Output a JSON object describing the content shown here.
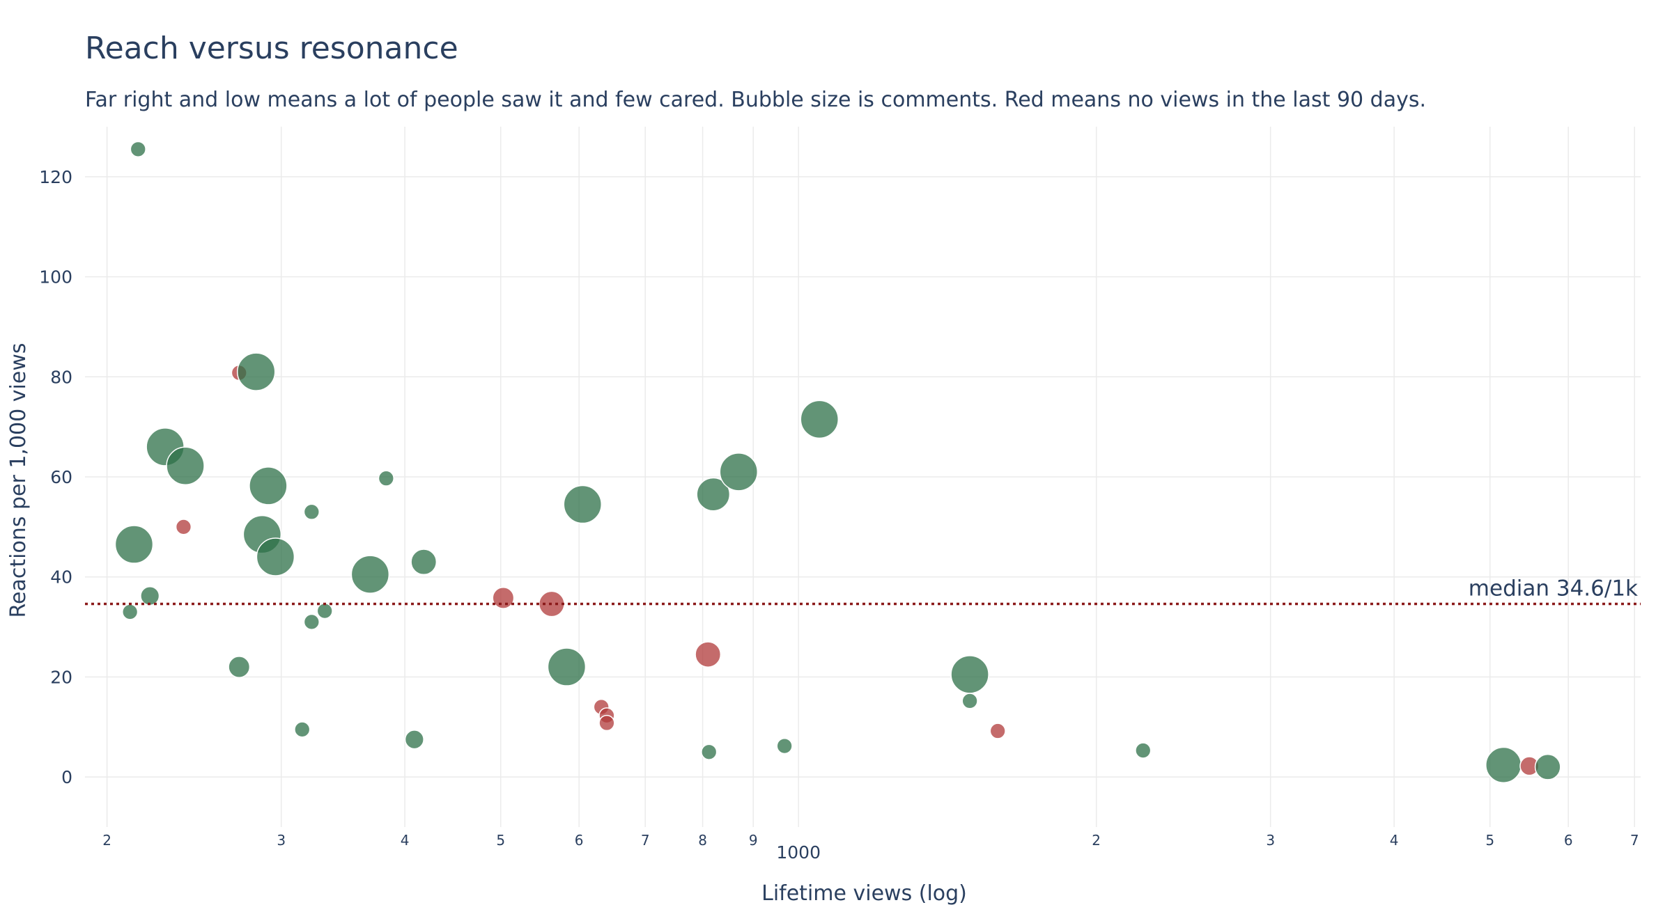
{
  "chart_data": {
    "type": "scatter",
    "title": "Reach versus resonance",
    "subtitle": "Far right and low means a lot of people saw it and few cared. Bubble size is comments. Red means no views in the last 90 days.",
    "xlabel": "Lifetime views (log)",
    "ylabel": "Reactions per 1,000 views",
    "x_scale": "log",
    "xlim": [
      190,
      7100
    ],
    "ylim": [
      -10,
      130
    ],
    "y_ticks": [
      0,
      20,
      40,
      60,
      80,
      100,
      120
    ],
    "x_ticks": [
      {
        "value": 200,
        "label": "2"
      },
      {
        "value": 300,
        "label": "3"
      },
      {
        "value": 400,
        "label": "4"
      },
      {
        "value": 500,
        "label": "5"
      },
      {
        "value": 600,
        "label": "6"
      },
      {
        "value": 700,
        "label": "7"
      },
      {
        "value": 800,
        "label": "8"
      },
      {
        "value": 900,
        "label": "9"
      },
      {
        "value": 1000,
        "label": "1000",
        "major": true
      },
      {
        "value": 2000,
        "label": "2"
      },
      {
        "value": 3000,
        "label": "3"
      },
      {
        "value": 4000,
        "label": "4"
      },
      {
        "value": 5000,
        "label": "5"
      },
      {
        "value": 6000,
        "label": "6"
      },
      {
        "value": 7000,
        "label": "7"
      }
    ],
    "grid": true,
    "median": {
      "value": 34.6,
      "label": "median 34.6/1k",
      "color": "#8b1a1a"
    },
    "colors": {
      "active": "#2e7048",
      "stale": "#b03a3a"
    },
    "points": [
      {
        "x": 215,
        "y": 125.5,
        "comments": 1,
        "stale": false
      },
      {
        "x": 213,
        "y": 46.5,
        "comments": 14,
        "stale": false
      },
      {
        "x": 211,
        "y": 33,
        "comments": 1,
        "stale": false
      },
      {
        "x": 221,
        "y": 36.2,
        "comments": 2,
        "stale": false
      },
      {
        "x": 229,
        "y": 66,
        "comments": 14,
        "stale": false
      },
      {
        "x": 240,
        "y": 62.2,
        "comments": 14,
        "stale": false
      },
      {
        "x": 239,
        "y": 50,
        "comments": 1,
        "stale": true
      },
      {
        "x": 272,
        "y": 80.8,
        "comments": 1,
        "stale": true
      },
      {
        "x": 283,
        "y": 81,
        "comments": 14,
        "stale": false
      },
      {
        "x": 272,
        "y": 22,
        "comments": 3,
        "stale": false
      },
      {
        "x": 291,
        "y": 58.2,
        "comments": 14,
        "stale": false
      },
      {
        "x": 287,
        "y": 48.5,
        "comments": 14,
        "stale": false
      },
      {
        "x": 296,
        "y": 44,
        "comments": 14,
        "stale": false
      },
      {
        "x": 315,
        "y": 9.5,
        "comments": 1,
        "stale": false
      },
      {
        "x": 322,
        "y": 53,
        "comments": 1,
        "stale": false
      },
      {
        "x": 322,
        "y": 31,
        "comments": 1,
        "stale": false
      },
      {
        "x": 332,
        "y": 33.2,
        "comments": 1,
        "stale": false
      },
      {
        "x": 369,
        "y": 40.5,
        "comments": 14,
        "stale": false
      },
      {
        "x": 383,
        "y": 59.7,
        "comments": 1,
        "stale": false
      },
      {
        "x": 409,
        "y": 7.5,
        "comments": 2,
        "stale": false
      },
      {
        "x": 418,
        "y": 43,
        "comments": 5,
        "stale": false
      },
      {
        "x": 503,
        "y": 35.8,
        "comments": 3,
        "stale": true
      },
      {
        "x": 563,
        "y": 34.6,
        "comments": 5,
        "stale": true
      },
      {
        "x": 583,
        "y": 22,
        "comments": 14,
        "stale": false
      },
      {
        "x": 605,
        "y": 54.5,
        "comments": 14,
        "stale": false
      },
      {
        "x": 632,
        "y": 14,
        "comments": 1,
        "stale": true
      },
      {
        "x": 640,
        "y": 12.3,
        "comments": 1,
        "stale": true
      },
      {
        "x": 640,
        "y": 10.8,
        "comments": 1,
        "stale": true
      },
      {
        "x": 812,
        "y": 5,
        "comments": 1,
        "stale": false
      },
      {
        "x": 810,
        "y": 24.5,
        "comments": 5,
        "stale": true
      },
      {
        "x": 820,
        "y": 56.5,
        "comments": 10,
        "stale": false
      },
      {
        "x": 870,
        "y": 61,
        "comments": 14,
        "stale": false
      },
      {
        "x": 968,
        "y": 6.2,
        "comments": 1,
        "stale": false
      },
      {
        "x": 1050,
        "y": 71.5,
        "comments": 14,
        "stale": false
      },
      {
        "x": 1490,
        "y": 20.5,
        "comments": 14,
        "stale": false
      },
      {
        "x": 1490,
        "y": 15.2,
        "comments": 1,
        "stale": false
      },
      {
        "x": 1590,
        "y": 9.2,
        "comments": 1,
        "stale": true
      },
      {
        "x": 2230,
        "y": 5.3,
        "comments": 1,
        "stale": false
      },
      {
        "x": 5160,
        "y": 2.4,
        "comments": 12,
        "stale": false
      },
      {
        "x": 5480,
        "y": 2.2,
        "comments": 2,
        "stale": true
      },
      {
        "x": 5720,
        "y": 2,
        "comments": 5,
        "stale": false
      }
    ]
  }
}
